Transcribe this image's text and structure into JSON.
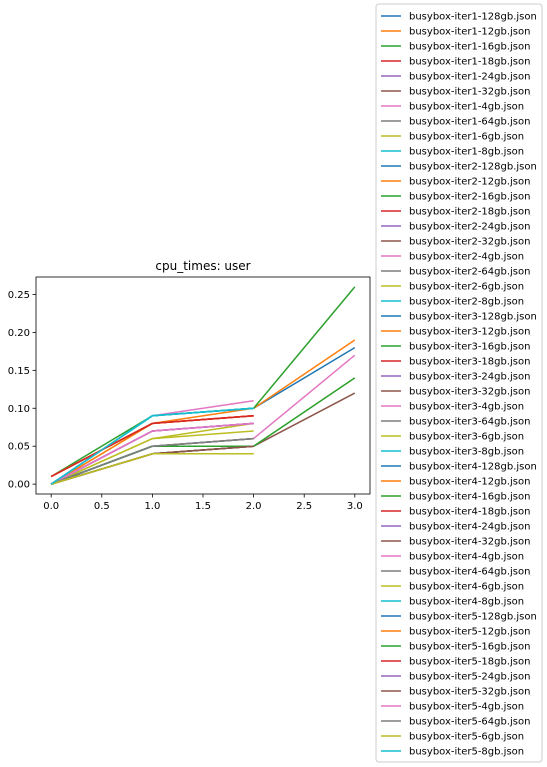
{
  "chart_data": {
    "type": "line",
    "title": "cpu_times: user",
    "xlabel": "",
    "ylabel": "",
    "xlim": [
      -0.15,
      3.15
    ],
    "ylim": [
      -0.013,
      0.273
    ],
    "xticks": [
      0.0,
      0.5,
      1.0,
      1.5,
      2.0,
      2.5,
      3.0
    ],
    "xtick_labels": [
      "0.0",
      "0.5",
      "1.0",
      "1.5",
      "2.0",
      "2.5",
      "3.0"
    ],
    "yticks": [
      0.0,
      0.05,
      0.1,
      0.15,
      0.2,
      0.25
    ],
    "ytick_labels": [
      "0.00",
      "0.05",
      "0.10",
      "0.15",
      "0.20",
      "0.25"
    ],
    "grid": false,
    "legend_position": "outside-right",
    "colors": [
      "#1f77b4",
      "#ff7f0e",
      "#2ca02c",
      "#d62728",
      "#9467bd",
      "#8c564b",
      "#e377c2",
      "#7f7f7f",
      "#bcbd22",
      "#17becf"
    ],
    "series": [
      {
        "name": "busybox-iter1-128gb.json",
        "x": [
          0,
          1,
          2,
          3
        ],
        "values": [
          0.0,
          0.09,
          0.1,
          0.18
        ]
      },
      {
        "name": "busybox-iter1-12gb.json",
        "x": [
          0,
          1,
          2,
          3
        ],
        "values": [
          0.0,
          0.08,
          0.1,
          0.19
        ]
      },
      {
        "name": "busybox-iter1-16gb.json",
        "x": [
          0,
          1,
          2,
          3
        ],
        "values": [
          0.01,
          0.09,
          0.1,
          0.26
        ]
      },
      {
        "name": "busybox-iter1-18gb.json",
        "x": [
          0,
          1,
          2
        ],
        "values": [
          0.01,
          0.08,
          0.09
        ]
      },
      {
        "name": "busybox-iter1-24gb.json",
        "x": [
          0,
          1,
          2
        ],
        "values": [
          0.0,
          0.07,
          0.08
        ]
      },
      {
        "name": "busybox-iter1-32gb.json",
        "x": [
          0,
          1,
          2,
          3
        ],
        "values": [
          0.0,
          0.05,
          0.05,
          0.12
        ]
      },
      {
        "name": "busybox-iter1-4gb.json",
        "x": [
          0,
          1,
          2
        ],
        "values": [
          0.0,
          0.09,
          0.11
        ]
      },
      {
        "name": "busybox-iter1-64gb.json",
        "x": [
          0,
          1,
          2
        ],
        "values": [
          0.0,
          0.05,
          0.06
        ]
      },
      {
        "name": "busybox-iter1-6gb.json",
        "x": [
          0,
          1,
          2
        ],
        "values": [
          0.0,
          0.06,
          0.08
        ]
      },
      {
        "name": "busybox-iter1-8gb.json",
        "x": [
          0,
          1,
          2
        ],
        "values": [
          0.0,
          0.09,
          0.1
        ]
      },
      {
        "name": "busybox-iter2-128gb.json",
        "x": [
          0,
          1,
          2
        ],
        "values": [
          0.0,
          0.04,
          0.05
        ]
      },
      {
        "name": "busybox-iter2-12gb.json",
        "x": [
          0,
          1,
          2
        ],
        "values": [
          0.01,
          0.08,
          0.09
        ]
      },
      {
        "name": "busybox-iter2-16gb.json",
        "x": [
          0,
          1,
          2,
          3
        ],
        "values": [
          0.0,
          0.05,
          0.05,
          0.14
        ]
      },
      {
        "name": "busybox-iter2-18gb.json",
        "x": [
          0,
          1,
          2
        ],
        "values": [
          0.01,
          0.08,
          0.09
        ]
      },
      {
        "name": "busybox-iter2-24gb.json",
        "x": [
          0,
          1,
          2
        ],
        "values": [
          0.0,
          0.07,
          0.08
        ]
      },
      {
        "name": "busybox-iter2-32gb.json",
        "x": [
          0,
          1,
          2
        ],
        "values": [
          0.0,
          0.04,
          0.05
        ]
      },
      {
        "name": "busybox-iter2-4gb.json",
        "x": [
          0,
          1,
          2,
          3
        ],
        "values": [
          0.0,
          0.05,
          0.06,
          0.17
        ]
      },
      {
        "name": "busybox-iter2-64gb.json",
        "x": [
          0,
          1,
          2
        ],
        "values": [
          0.0,
          0.05,
          0.06
        ]
      },
      {
        "name": "busybox-iter2-6gb.json",
        "x": [
          0,
          1,
          2
        ],
        "values": [
          0.0,
          0.04,
          0.04
        ]
      },
      {
        "name": "busybox-iter2-8gb.json",
        "x": [
          0,
          1,
          2
        ],
        "values": [
          0.0,
          0.09,
          0.1
        ]
      },
      {
        "name": "busybox-iter3-128gb.json",
        "x": [
          0,
          1,
          2
        ],
        "values": [
          0.0,
          0.05,
          0.05
        ]
      },
      {
        "name": "busybox-iter3-12gb.json",
        "x": [
          0,
          1,
          2
        ],
        "values": [
          0.0,
          0.08,
          0.09
        ]
      },
      {
        "name": "busybox-iter3-16gb.json",
        "x": [
          0,
          1,
          2
        ],
        "values": [
          0.0,
          0.04,
          0.05
        ]
      },
      {
        "name": "busybox-iter3-18gb.json",
        "x": [
          0,
          1,
          2
        ],
        "values": [
          0.01,
          0.08,
          0.09
        ]
      },
      {
        "name": "busybox-iter3-24gb.json",
        "x": [
          0,
          1,
          2
        ],
        "values": [
          0.0,
          0.07,
          0.08
        ]
      },
      {
        "name": "busybox-iter3-32gb.json",
        "x": [
          0,
          1,
          2
        ],
        "values": [
          0.0,
          0.04,
          0.05
        ]
      },
      {
        "name": "busybox-iter3-4gb.json",
        "x": [
          0,
          1,
          2
        ],
        "values": [
          0.0,
          0.07,
          0.08
        ]
      },
      {
        "name": "busybox-iter3-64gb.json",
        "x": [
          0,
          1,
          2
        ],
        "values": [
          0.0,
          0.05,
          0.06
        ]
      },
      {
        "name": "busybox-iter3-6gb.json",
        "x": [
          0,
          1,
          2
        ],
        "values": [
          0.0,
          0.06,
          0.07
        ]
      },
      {
        "name": "busybox-iter3-8gb.json",
        "x": [
          0,
          1,
          2
        ],
        "values": [
          0.0,
          0.09,
          0.1
        ]
      },
      {
        "name": "busybox-iter4-128gb.json",
        "x": [
          0,
          1,
          2
        ],
        "values": [
          0.0,
          0.05,
          0.05
        ]
      },
      {
        "name": "busybox-iter4-12gb.json",
        "x": [
          0,
          1,
          2
        ],
        "values": [
          0.01,
          0.08,
          0.09
        ]
      },
      {
        "name": "busybox-iter4-16gb.json",
        "x": [
          0,
          1,
          2
        ],
        "values": [
          0.0,
          0.05,
          0.05
        ]
      },
      {
        "name": "busybox-iter4-18gb.json",
        "x": [
          0,
          1,
          2
        ],
        "values": [
          0.01,
          0.08,
          0.09
        ]
      },
      {
        "name": "busybox-iter4-24gb.json",
        "x": [
          0,
          1,
          2
        ],
        "values": [
          0.0,
          0.07,
          0.08
        ]
      },
      {
        "name": "busybox-iter4-32gb.json",
        "x": [
          0,
          1,
          2
        ],
        "values": [
          0.0,
          0.04,
          0.05
        ]
      },
      {
        "name": "busybox-iter4-4gb.json",
        "x": [
          0,
          1,
          2
        ],
        "values": [
          0.0,
          0.07,
          0.08
        ]
      },
      {
        "name": "busybox-iter4-64gb.json",
        "x": [
          0,
          1,
          2
        ],
        "values": [
          0.0,
          0.05,
          0.06
        ]
      },
      {
        "name": "busybox-iter4-6gb.json",
        "x": [
          0,
          1,
          2
        ],
        "values": [
          0.0,
          0.04,
          0.04
        ]
      },
      {
        "name": "busybox-iter4-8gb.json",
        "x": [
          0,
          1,
          2
        ],
        "values": [
          0.0,
          0.09,
          0.1
        ]
      },
      {
        "name": "busybox-iter5-128gb.json",
        "x": [
          0,
          1,
          2
        ],
        "values": [
          0.0,
          0.05,
          0.05
        ]
      },
      {
        "name": "busybox-iter5-12gb.json",
        "x": [
          0,
          1,
          2
        ],
        "values": [
          0.01,
          0.08,
          0.09
        ]
      },
      {
        "name": "busybox-iter5-16gb.json",
        "x": [
          0,
          1,
          2
        ],
        "values": [
          0.0,
          0.05,
          0.05
        ]
      },
      {
        "name": "busybox-iter5-18gb.json",
        "x": [
          0,
          1,
          2
        ],
        "values": [
          0.01,
          0.08,
          0.09
        ]
      },
      {
        "name": "busybox-iter5-24gb.json",
        "x": [
          0,
          1,
          2
        ],
        "values": [
          0.0,
          0.07,
          0.08
        ]
      },
      {
        "name": "busybox-iter5-32gb.json",
        "x": [
          0,
          1,
          2
        ],
        "values": [
          0.0,
          0.04,
          0.05
        ]
      },
      {
        "name": "busybox-iter5-4gb.json",
        "x": [
          0,
          1,
          2
        ],
        "values": [
          0.0,
          0.07,
          0.08
        ]
      },
      {
        "name": "busybox-iter5-64gb.json",
        "x": [
          0,
          1,
          2
        ],
        "values": [
          0.0,
          0.05,
          0.06
        ]
      },
      {
        "name": "busybox-iter5-6gb.json",
        "x": [
          0,
          1,
          2
        ],
        "values": [
          0.0,
          0.04,
          0.04
        ]
      },
      {
        "name": "busybox-iter5-8gb.json",
        "x": [
          0,
          1,
          2
        ],
        "values": [
          0.0,
          0.09,
          0.1
        ]
      }
    ]
  }
}
